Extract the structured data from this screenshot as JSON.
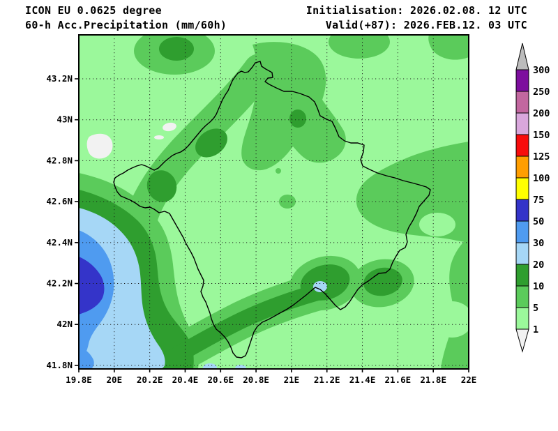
{
  "header": {
    "model_line": "ICON EU 0.0625 degree",
    "product_line": "60-h Acc.Precipitation (mm/60h)",
    "init_line": "Initialisation: 2026.02.08. 12 UTC",
    "valid_line": "Valid(+87): 2026.FEB.12. 03 UTC"
  },
  "chart_data": {
    "type": "heatmap",
    "title": "60-h Acc.Precipitation (mm/60h)",
    "model": "ICON EU 0.0625 degree",
    "initialisation": "2026.02.08. 12 UTC",
    "valid": "2026.FEB.12. 03 UTC",
    "lead_hours": 87,
    "units": "mm/60h",
    "x_axis": {
      "range_deg_east": [
        19.8,
        22.0
      ],
      "ticks": [
        "19.8E",
        "20E",
        "20.2E",
        "20.4E",
        "20.6E",
        "20.8E",
        "21E",
        "21.2E",
        "21.4E",
        "21.6E",
        "21.8E",
        "22E"
      ]
    },
    "y_axis": {
      "range_deg_north": [
        41.78,
        43.41
      ],
      "ticks": [
        "43.2N",
        "43N",
        "42.8N",
        "42.6N",
        "42.4N",
        "42.2N",
        "42N",
        "41.8N"
      ]
    },
    "grid": true,
    "map_overlay": "Kosovo country border",
    "colorbar": {
      "orientation": "vertical-right",
      "levels": [
        1,
        5,
        10,
        20,
        30,
        50,
        75,
        100,
        125,
        150,
        200,
        250,
        300
      ],
      "colors": [
        "#F2F2F2",
        "#9BF89B",
        "#5BCB5B",
        "#2F9E2F",
        "#A6D7F6",
        "#4F9BF0",
        "#3434C9",
        "#FFFF00",
        "#FF9E00",
        "#F80C0C",
        "#D9A7DC",
        "#C2679F",
        "#7D0E9E",
        "#BCBCBC"
      ],
      "under_color": "#F2F2F2",
      "over_color": "#BCBCBC"
    },
    "features": [
      {
        "name": "heavy-precip-core",
        "approx_lon_e": 19.9,
        "approx_lat_n": 42.3,
        "value_mm": "50-75"
      },
      {
        "name": "west-precip-system",
        "approx_lon_e": 20.0,
        "approx_lat_n": 42.2,
        "value_mm": "20-50",
        "desc": "concentric 20-30 and 30-50 mm rings west of Kosovo border"
      },
      {
        "name": "southern-mountain-band",
        "desc": "10-20 mm band along southwestern border running northeast",
        "value_mm": "10-20"
      },
      {
        "name": "south-border-spot",
        "approx_lon_e": 21.16,
        "approx_lat_n": 42.18,
        "value_mm": "20-30"
      },
      {
        "name": "northwest-band",
        "desc": "5-10 mm band from west-centre toward north tip with embedded 10-20 mm cores",
        "value_mm": "5-20"
      },
      {
        "name": "east-region",
        "desc": "5-10 mm area east of Kosovo with small 10-20 mm cores",
        "value_mm": "5-10"
      },
      {
        "name": "kosovo-interior",
        "desc": "most of central Kosovo",
        "value_mm": "1-5"
      },
      {
        "name": "dry-patches-northwest",
        "desc": "small spots below 1 mm",
        "value_mm": "<1"
      }
    ]
  }
}
